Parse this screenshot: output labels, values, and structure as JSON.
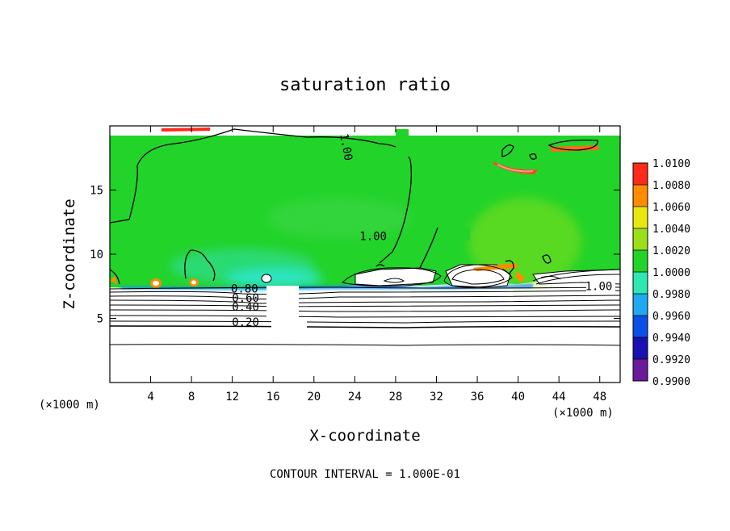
{
  "chart_data": {
    "type": "heatmap",
    "title": "saturation ratio",
    "xlabel": "X-coordinate",
    "ylabel": "Z-coordinate",
    "x_unit": "(×1000 m)",
    "xlim": [
      0,
      50
    ],
    "ylim": [
      0,
      20
    ],
    "x_ticks": [
      4,
      8,
      12,
      16,
      20,
      24,
      28,
      32,
      36,
      40,
      44,
      48
    ],
    "y_ticks": [
      5,
      10,
      15
    ],
    "colorbar": {
      "levels": [
        0.99,
        0.992,
        0.994,
        0.996,
        0.998,
        1.0,
        1.002,
        1.004,
        1.006,
        1.008,
        1.01
      ],
      "labels": [
        "0.9900",
        "0.9920",
        "0.9940",
        "0.9960",
        "0.9980",
        "1.0000",
        "1.0020",
        "1.0040",
        "1.0060",
        "1.0080",
        "1.0100"
      ],
      "colors": [
        "#6a1b9a",
        "#1a0fb0",
        "#0a4fe6",
        "#20a8f0",
        "#2ee8b4",
        "#22d32a",
        "#9adf18",
        "#e8e810",
        "#ff8c00",
        "#ff2a1a",
        "#ff9aa0"
      ]
    },
    "contour_labels": [
      {
        "text": "1.00",
        "x": 22.8,
        "y": 18.3
      },
      {
        "text": "1.00",
        "x": 25.8,
        "y": 11.1
      },
      {
        "text": "1.00",
        "x": 47.9,
        "y": 7.2
      },
      {
        "text": "0.80",
        "x": 13.2,
        "y": 7.0
      },
      {
        "text": "0.60",
        "x": 13.3,
        "y": 6.3
      },
      {
        "text": "0.40",
        "x": 13.3,
        "y": 5.6
      },
      {
        "text": "0.20",
        "x": 13.3,
        "y": 4.4
      }
    ],
    "contour_interval": "CONTOUR INTERVAL = 1.000E-01"
  }
}
